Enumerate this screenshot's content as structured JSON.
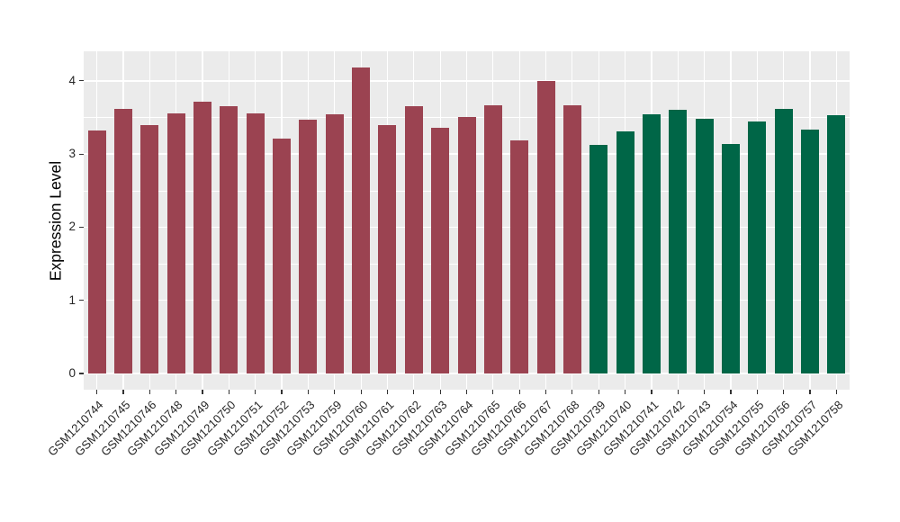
{
  "chart_data": {
    "type": "bar",
    "title": "",
    "xlabel": "",
    "ylabel": "Expression Level",
    "ylim": [
      -0.25,
      4.39
    ],
    "yticks": [
      0,
      1,
      2,
      3,
      4
    ],
    "ytick_labels": [
      "0",
      "1",
      "2",
      "3",
      "4"
    ],
    "minor_yticks": [
      0.5,
      1.5,
      2.5,
      3.5
    ],
    "xtick_rotation": 45,
    "grid": true,
    "legend_position": "none",
    "plot_background": "#EBEBEB",
    "grid_color": "#FFFFFF",
    "axis_text_color": "#262626",
    "group_colors": {
      "maroon": "#9B4351",
      "green": "#006647"
    },
    "bars": [
      {
        "label": "GSM1210744",
        "value": 3.32,
        "group": "maroon"
      },
      {
        "label": "GSM1210745",
        "value": 3.62,
        "group": "maroon"
      },
      {
        "label": "GSM1210746",
        "value": 3.39,
        "group": "maroon"
      },
      {
        "label": "GSM1210748",
        "value": 3.55,
        "group": "maroon"
      },
      {
        "label": "GSM1210749",
        "value": 3.71,
        "group": "maroon"
      },
      {
        "label": "GSM1210750",
        "value": 3.65,
        "group": "maroon"
      },
      {
        "label": "GSM1210751",
        "value": 3.55,
        "group": "maroon"
      },
      {
        "label": "GSM1210752",
        "value": 3.21,
        "group": "maroon"
      },
      {
        "label": "GSM1210753",
        "value": 3.47,
        "group": "maroon"
      },
      {
        "label": "GSM1210759",
        "value": 3.54,
        "group": "maroon"
      },
      {
        "label": "GSM1210760",
        "value": 4.18,
        "group": "maroon"
      },
      {
        "label": "GSM1210761",
        "value": 3.39,
        "group": "maroon"
      },
      {
        "label": "GSM1210762",
        "value": 3.65,
        "group": "maroon"
      },
      {
        "label": "GSM1210763",
        "value": 3.36,
        "group": "maroon"
      },
      {
        "label": "GSM1210764",
        "value": 3.51,
        "group": "maroon"
      },
      {
        "label": "GSM1210765",
        "value": 3.67,
        "group": "maroon"
      },
      {
        "label": "GSM1210766",
        "value": 3.19,
        "group": "maroon"
      },
      {
        "label": "GSM1210767",
        "value": 4.0,
        "group": "maroon"
      },
      {
        "label": "GSM1210768",
        "value": 3.66,
        "group": "maroon"
      },
      {
        "label": "GSM1210739",
        "value": 3.12,
        "group": "green"
      },
      {
        "label": "GSM1210740",
        "value": 3.31,
        "group": "green"
      },
      {
        "label": "GSM1210741",
        "value": 3.54,
        "group": "green"
      },
      {
        "label": "GSM1210742",
        "value": 3.61,
        "group": "green"
      },
      {
        "label": "GSM1210743",
        "value": 3.48,
        "group": "green"
      },
      {
        "label": "GSM1210754",
        "value": 3.14,
        "group": "green"
      },
      {
        "label": "GSM1210755",
        "value": 3.44,
        "group": "green"
      },
      {
        "label": "GSM1210756",
        "value": 3.62,
        "group": "green"
      },
      {
        "label": "GSM1210757",
        "value": 3.33,
        "group": "green"
      },
      {
        "label": "GSM1210758",
        "value": 3.53,
        "group": "green"
      }
    ]
  }
}
